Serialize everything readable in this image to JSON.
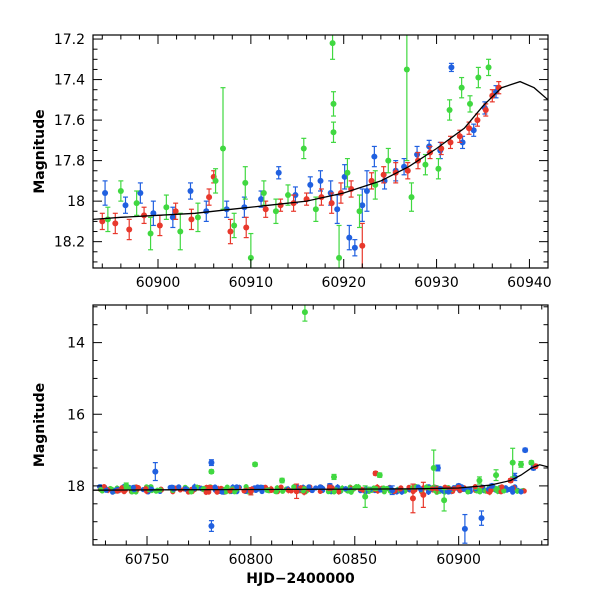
{
  "chart_data": [
    {
      "type": "scatter",
      "xlabel": "",
      "ylabel": "Magnitude",
      "xlim": [
        60893,
        60942
      ],
      "ylim": [
        18.33,
        17.18
      ],
      "y_inverted": true,
      "x_ticks": [
        60900,
        60910,
        60920,
        60930,
        60940
      ],
      "y_ticks": [
        17.2,
        17.4,
        17.6,
        17.8,
        18,
        18.2
      ],
      "x_tick_labels": [
        "60900",
        "60910",
        "60920",
        "60930",
        "60940"
      ],
      "y_tick_labels": [
        "17.2",
        "17.4",
        "17.6",
        "17.8",
        "18",
        "18.2"
      ],
      "series": [
        {
          "color": "#2060e0",
          "points": [
            {
              "x": 60894.3,
              "y": 17.96,
              "e": 0.06
            },
            {
              "x": 60896.5,
              "y": 18.02,
              "e": 0.04
            },
            {
              "x": 60898.1,
              "y": 17.96,
              "e": 0.05
            },
            {
              "x": 60899.5,
              "y": 18.06,
              "e": 0.06
            },
            {
              "x": 60901.6,
              "y": 18.08,
              "e": 0.05
            },
            {
              "x": 60903.5,
              "y": 17.95,
              "e": 0.04
            },
            {
              "x": 60905.2,
              "y": 18.05,
              "e": 0.05
            },
            {
              "x": 60907.4,
              "y": 18.04,
              "e": 0.04
            },
            {
              "x": 60909.3,
              "y": 18.03,
              "e": 0.05
            },
            {
              "x": 60911.1,
              "y": 17.99,
              "e": 0.04
            },
            {
              "x": 60913.0,
              "y": 17.86,
              "e": 0.03
            },
            {
              "x": 60914.8,
              "y": 17.97,
              "e": 0.04
            },
            {
              "x": 60916.4,
              "y": 17.92,
              "e": 0.04
            },
            {
              "x": 60917.5,
              "y": 17.9,
              "e": 0.05
            },
            {
              "x": 60918.6,
              "y": 17.96,
              "e": 0.06
            },
            {
              "x": 60919.3,
              "y": 18.04,
              "e": 0.07
            },
            {
              "x": 60920.1,
              "y": 17.88,
              "e": 0.06
            },
            {
              "x": 60920.6,
              "y": 18.18,
              "e": 0.06
            },
            {
              "x": 60921.2,
              "y": 18.23,
              "e": 0.04
            },
            {
              "x": 60922.0,
              "y": 18.02,
              "e": 0.08
            },
            {
              "x": 60922.5,
              "y": 17.95,
              "e": 0.1
            },
            {
              "x": 60923.3,
              "y": 17.78,
              "e": 0.05
            },
            {
              "x": 60924.4,
              "y": 17.9,
              "e": 0.04
            },
            {
              "x": 60925.6,
              "y": 17.85,
              "e": 0.05
            },
            {
              "x": 60926.5,
              "y": 17.83,
              "e": 0.04
            },
            {
              "x": 60927.9,
              "y": 17.77,
              "e": 0.04
            },
            {
              "x": 60929.2,
              "y": 17.73,
              "e": 0.03
            },
            {
              "x": 60930.4,
              "y": 17.75,
              "e": 0.04
            },
            {
              "x": 60931.6,
              "y": 17.34,
              "e": 0.02
            },
            {
              "x": 60932.8,
              "y": 17.71,
              "e": 0.03
            },
            {
              "x": 60934.0,
              "y": 17.65,
              "e": 0.03
            },
            {
              "x": 60935.2,
              "y": 17.54,
              "e": 0.03
            },
            {
              "x": 60936.4,
              "y": 17.46,
              "e": 0.03
            }
          ]
        },
        {
          "color": "#e8382c",
          "points": [
            {
              "x": 60894.0,
              "y": 18.1,
              "e": 0.04
            },
            {
              "x": 60895.4,
              "y": 18.11,
              "e": 0.05
            },
            {
              "x": 60896.9,
              "y": 18.14,
              "e": 0.05
            },
            {
              "x": 60898.5,
              "y": 18.07,
              "e": 0.04
            },
            {
              "x": 60900.2,
              "y": 18.12,
              "e": 0.05
            },
            {
              "x": 60901.9,
              "y": 18.05,
              "e": 0.04
            },
            {
              "x": 60903.6,
              "y": 18.09,
              "e": 0.05
            },
            {
              "x": 60905.5,
              "y": 17.98,
              "e": 0.04
            },
            {
              "x": 60906.0,
              "y": 17.88,
              "e": 0.03
            },
            {
              "x": 60907.8,
              "y": 18.15,
              "e": 0.06
            },
            {
              "x": 60909.5,
              "y": 18.13,
              "e": 0.05
            },
            {
              "x": 60911.6,
              "y": 18.04,
              "e": 0.04
            },
            {
              "x": 60913.2,
              "y": 18.02,
              "e": 0.03
            },
            {
              "x": 60914.6,
              "y": 18.01,
              "e": 0.04
            },
            {
              "x": 60916.0,
              "y": 17.99,
              "e": 0.03
            },
            {
              "x": 60917.6,
              "y": 17.98,
              "e": 0.04
            },
            {
              "x": 60918.7,
              "y": 18.01,
              "e": 0.05
            },
            {
              "x": 60919.7,
              "y": 17.96,
              "e": 0.05
            },
            {
              "x": 60920.8,
              "y": 17.94,
              "e": 0.04
            },
            {
              "x": 60922.0,
              "y": 18.22,
              "e": 0.11
            },
            {
              "x": 60923.0,
              "y": 17.9,
              "e": 0.04
            },
            {
              "x": 60924.3,
              "y": 17.87,
              "e": 0.04
            },
            {
              "x": 60925.6,
              "y": 17.86,
              "e": 0.05
            },
            {
              "x": 60926.9,
              "y": 17.85,
              "e": 0.04
            },
            {
              "x": 60928.0,
              "y": 17.8,
              "e": 0.04
            },
            {
              "x": 60929.3,
              "y": 17.76,
              "e": 0.03
            },
            {
              "x": 60930.5,
              "y": 17.74,
              "e": 0.03
            },
            {
              "x": 60931.5,
              "y": 17.71,
              "e": 0.03
            },
            {
              "x": 60932.5,
              "y": 17.68,
              "e": 0.03
            },
            {
              "x": 60933.5,
              "y": 17.64,
              "e": 0.03
            },
            {
              "x": 60934.4,
              "y": 17.6,
              "e": 0.03
            },
            {
              "x": 60935.3,
              "y": 17.55,
              "e": 0.03
            },
            {
              "x": 60936.0,
              "y": 17.48,
              "e": 0.03
            },
            {
              "x": 60936.7,
              "y": 17.44,
              "e": 0.03
            }
          ]
        },
        {
          "color": "#40d840",
          "points": [
            {
              "x": 60894.6,
              "y": 18.09,
              "e": 0.06
            },
            {
              "x": 60896.0,
              "y": 17.95,
              "e": 0.05
            },
            {
              "x": 60897.7,
              "y": 18.01,
              "e": 0.06
            },
            {
              "x": 60899.2,
              "y": 18.16,
              "e": 0.08
            },
            {
              "x": 60900.9,
              "y": 18.03,
              "e": 0.06
            },
            {
              "x": 60902.4,
              "y": 18.15,
              "e": 0.09
            },
            {
              "x": 60904.3,
              "y": 18.08,
              "e": 0.07
            },
            {
              "x": 60906.2,
              "y": 17.9,
              "e": 0.06
            },
            {
              "x": 60907.0,
              "y": 17.74,
              "e": 0.3
            },
            {
              "x": 60908.2,
              "y": 18.12,
              "e": 0.06
            },
            {
              "x": 60909.4,
              "y": 17.91,
              "e": 0.08
            },
            {
              "x": 60910.0,
              "y": 18.28,
              "e": 0.12
            },
            {
              "x": 60911.4,
              "y": 17.96,
              "e": 0.06
            },
            {
              "x": 60912.7,
              "y": 18.05,
              "e": 0.06
            },
            {
              "x": 60914.0,
              "y": 17.97,
              "e": 0.05
            },
            {
              "x": 60915.7,
              "y": 17.74,
              "e": 0.05
            },
            {
              "x": 60917.0,
              "y": 18.04,
              "e": 0.06
            },
            {
              "x": 60918.8,
              "y": 17.22,
              "e": 0.08
            },
            {
              "x": 60918.9,
              "y": 17.52,
              "e": 0.06
            },
            {
              "x": 60918.9,
              "y": 17.66,
              "e": 0.05
            },
            {
              "x": 60919.5,
              "y": 18.28,
              "e": 0.16
            },
            {
              "x": 60920.4,
              "y": 17.86,
              "e": 0.07
            },
            {
              "x": 60921.7,
              "y": 18.05,
              "e": 0.08
            },
            {
              "x": 60923.4,
              "y": 17.92,
              "e": 0.07
            },
            {
              "x": 60924.8,
              "y": 17.8,
              "e": 0.06
            },
            {
              "x": 60926.8,
              "y": 17.35,
              "e": 0.45
            },
            {
              "x": 60927.3,
              "y": 17.98,
              "e": 0.07
            },
            {
              "x": 60928.8,
              "y": 17.82,
              "e": 0.05
            },
            {
              "x": 60930.2,
              "y": 17.84,
              "e": 0.05
            },
            {
              "x": 60931.4,
              "y": 17.55,
              "e": 0.05
            },
            {
              "x": 60932.7,
              "y": 17.44,
              "e": 0.05
            },
            {
              "x": 60933.6,
              "y": 17.52,
              "e": 0.04
            },
            {
              "x": 60934.5,
              "y": 17.39,
              "e": 0.05
            },
            {
              "x": 60935.6,
              "y": 17.34,
              "e": 0.04
            }
          ]
        }
      ],
      "model_curve": {
        "color": "#000000",
        "x": [
          60893,
          60896,
          60900,
          60904,
          60908,
          60912,
          60916,
          60920,
          60924,
          60927,
          60930,
          60933,
          60935,
          60937,
          60939,
          60940.5,
          60942
        ],
        "y": [
          18.09,
          18.08,
          18.07,
          18.06,
          18.04,
          18.02,
          18.0,
          17.96,
          17.9,
          17.83,
          17.74,
          17.64,
          17.53,
          17.44,
          17.41,
          17.44,
          17.5
        ]
      }
    },
    {
      "type": "scatter",
      "xlabel": "HJD−2400000",
      "ylabel": "Magnitude",
      "xlim": [
        60724,
        60943
      ],
      "ylim": [
        19.65,
        12.95
      ],
      "y_inverted": true,
      "x_ticks": [
        60750,
        60800,
        60850,
        60900
      ],
      "y_ticks": [
        14,
        16,
        18
      ],
      "x_tick_labels": [
        "60750",
        "60800",
        "60850",
        "60900"
      ],
      "y_tick_labels": [
        "14",
        "16",
        "18"
      ],
      "series": [
        {
          "color": "#2060e0",
          "points": [
            {
              "x": 60754,
              "y": 17.6,
              "e": 0.25
            },
            {
              "x": 60781,
              "y": 17.35,
              "e": 0.08
            },
            {
              "x": 60781,
              "y": 19.12,
              "e": 0.15
            },
            {
              "x": 60762,
              "y": 18.05,
              "e": 0.06
            },
            {
              "x": 60805,
              "y": 18.05,
              "e": 0.06
            },
            {
              "x": 60838,
              "y": 18.0,
              "e": 0.06
            },
            {
              "x": 60868,
              "y": 18.12,
              "e": 0.12
            },
            {
              "x": 60890,
              "y": 17.5,
              "e": 0.08
            },
            {
              "x": 60900,
              "y": 18.0,
              "e": 0.05
            },
            {
              "x": 60903,
              "y": 19.2,
              "e": 0.4
            },
            {
              "x": 60911,
              "y": 18.9,
              "e": 0.2
            },
            {
              "x": 60916,
              "y": 18.0,
              "e": 0.05
            },
            {
              "x": 60927,
              "y": 17.75,
              "e": 0.1
            },
            {
              "x": 60932,
              "y": 17.0,
              "e": 0.05
            },
            {
              "x": 60936,
              "y": 17.5,
              "e": 0.05
            }
          ]
        },
        {
          "color": "#e8382c",
          "points": [
            {
              "x": 60780,
              "y": 18.05,
              "e": 0.05
            },
            {
              "x": 60800,
              "y": 18.15,
              "e": 0.1
            },
            {
              "x": 60822,
              "y": 18.15,
              "e": 0.2
            },
            {
              "x": 60838,
              "y": 18.05,
              "e": 0.07
            },
            {
              "x": 60860,
              "y": 17.65,
              "e": 0.05
            },
            {
              "x": 60878,
              "y": 18.35,
              "e": 0.4
            },
            {
              "x": 60883,
              "y": 18.25,
              "e": 0.35
            },
            {
              "x": 60900,
              "y": 18.05,
              "e": 0.05
            },
            {
              "x": 60925,
              "y": 17.85,
              "e": 0.05
            },
            {
              "x": 60937,
              "y": 17.45,
              "e": 0.05
            }
          ]
        },
        {
          "color": "#40d840",
          "points": [
            {
              "x": 60740,
              "y": 18.0,
              "e": 0.08
            },
            {
              "x": 60781,
              "y": 17.6,
              "e": 0.05
            },
            {
              "x": 60802,
              "y": 17.4,
              "e": 0.05
            },
            {
              "x": 60815,
              "y": 17.85,
              "e": 0.06
            },
            {
              "x": 60826,
              "y": 13.15,
              "e": 0.25
            },
            {
              "x": 60840,
              "y": 17.75,
              "e": 0.07
            },
            {
              "x": 60855,
              "y": 18.3,
              "e": 0.3
            },
            {
              "x": 60862,
              "y": 17.7,
              "e": 0.06
            },
            {
              "x": 60888,
              "y": 17.5,
              "e": 0.5
            },
            {
              "x": 60893,
              "y": 18.4,
              "e": 0.3
            },
            {
              "x": 60910,
              "y": 17.85,
              "e": 0.1
            },
            {
              "x": 60918,
              "y": 17.7,
              "e": 0.15
            },
            {
              "x": 60926,
              "y": 17.35,
              "e": 0.4
            },
            {
              "x": 60930,
              "y": 17.4,
              "e": 0.08
            },
            {
              "x": 60935,
              "y": 17.35,
              "e": 0.05
            }
          ]
        }
      ],
      "model_curve": {
        "color": "#000000",
        "x": [
          60724,
          60760,
          60800,
          60850,
          60880,
          60900,
          60915,
          60925,
          60930,
          60935,
          60939,
          60943
        ],
        "y": [
          18.12,
          18.11,
          18.1,
          18.09,
          18.08,
          18.06,
          17.98,
          17.85,
          17.7,
          17.5,
          17.41,
          17.47
        ]
      },
      "baseline_cloud": {
        "x_range": [
          60727,
          60932
        ],
        "y_center": 18.1,
        "scatter": 0.08,
        "colors": [
          "#2060e0",
          "#40d840",
          "#e8382c"
        ]
      }
    }
  ]
}
